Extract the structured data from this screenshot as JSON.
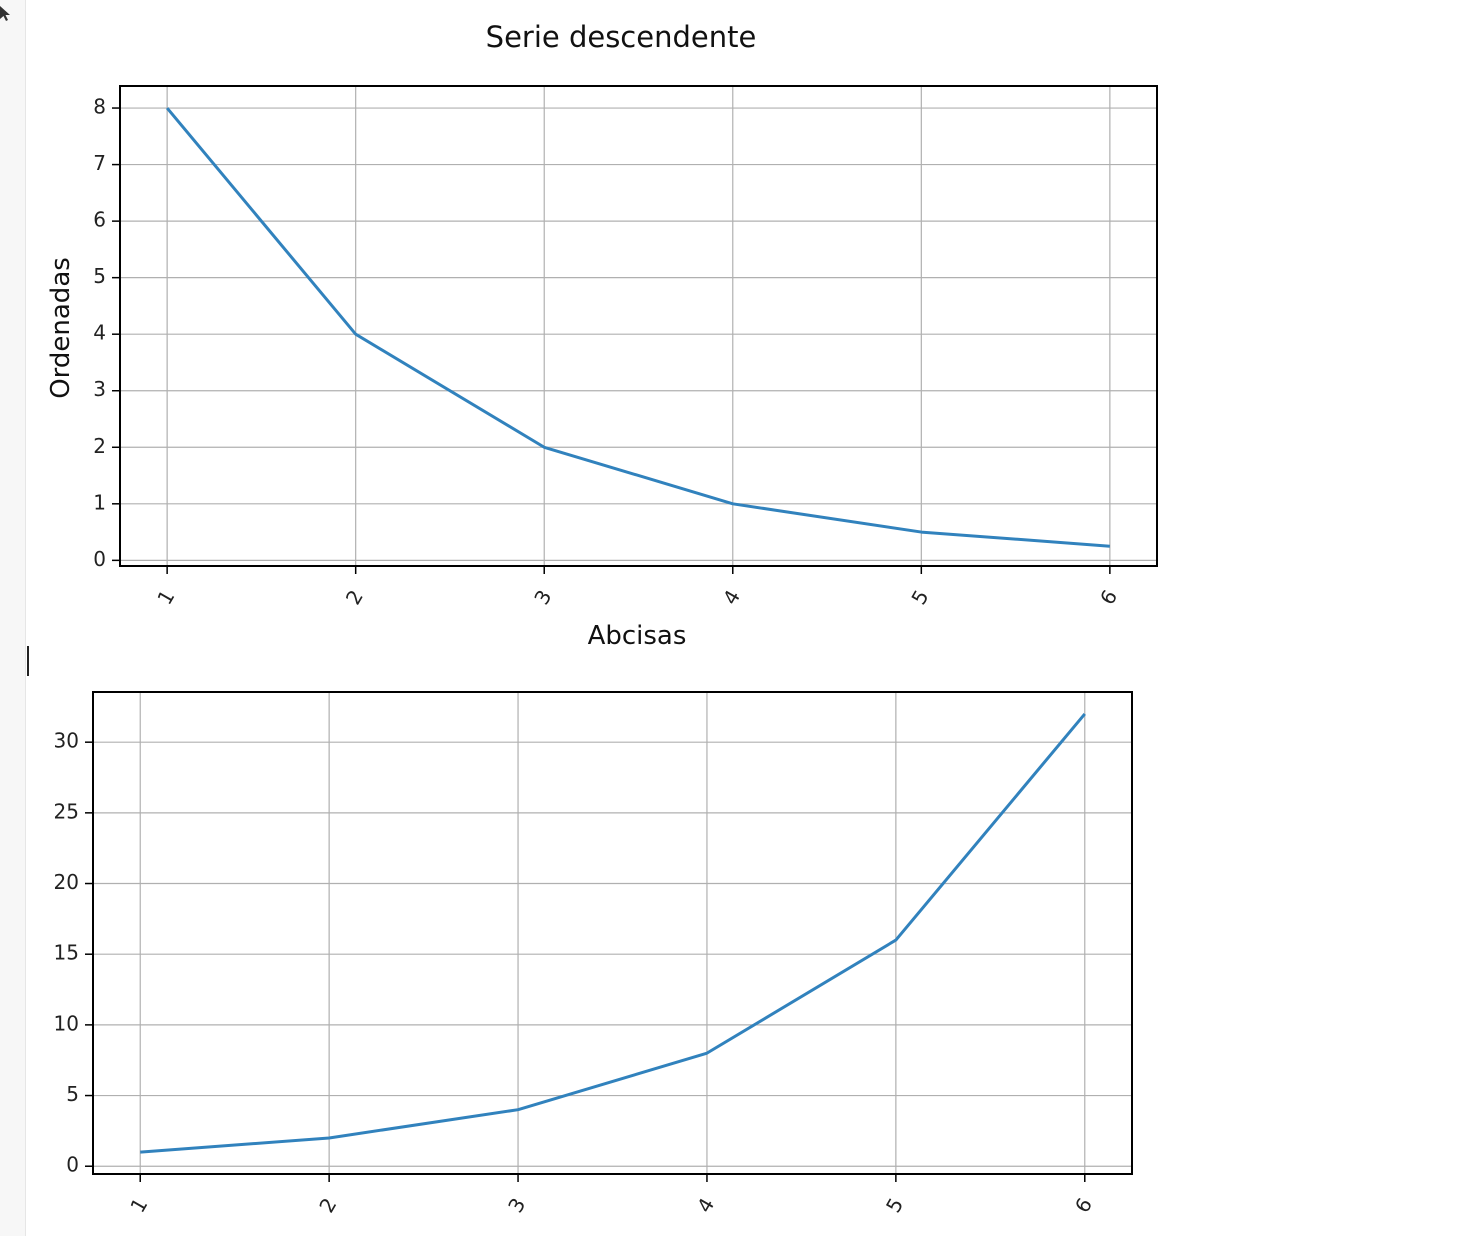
{
  "colors": {
    "line": "#3182bd",
    "grid": "#b0b0b0",
    "frame": "#000000"
  },
  "chart_data": [
    {
      "type": "line",
      "title": "Serie descendente",
      "xlabel": "Abcisas",
      "ylabel": "Ordenadas",
      "x": [
        1,
        2,
        3,
        4,
        5,
        6
      ],
      "x_tick_labels": [
        "1",
        "2",
        "3",
        "4",
        "5",
        "6"
      ],
      "series": [
        {
          "values": [
            8,
            4,
            2,
            1,
            0.5,
            0.25
          ]
        }
      ],
      "y_ticks": [
        0,
        1,
        2,
        3,
        4,
        5,
        6,
        7,
        8
      ],
      "y_tick_labels": [
        "0",
        "1",
        "2",
        "3",
        "4",
        "5",
        "6",
        "7",
        "8"
      ],
      "xlim": [
        0.75,
        6.25
      ],
      "ylim": [
        -0.1,
        8.39
      ],
      "grid": true
    },
    {
      "type": "line",
      "title": "",
      "xlabel": "",
      "ylabel": "",
      "x": [
        1,
        2,
        3,
        4,
        5,
        6
      ],
      "x_tick_labels": [
        "1",
        "2",
        "3",
        "4",
        "5",
        "6"
      ],
      "series": [
        {
          "values": [
            1,
            2,
            4,
            8,
            16,
            32
          ]
        }
      ],
      "y_ticks": [
        0,
        5,
        10,
        15,
        20,
        25,
        30
      ],
      "y_tick_labels": [
        "0",
        "5",
        "10",
        "15",
        "20",
        "25",
        "30"
      ],
      "xlim": [
        0.75,
        6.25
      ],
      "ylim": [
        -0.55,
        33.55
      ],
      "grid": true
    }
  ]
}
